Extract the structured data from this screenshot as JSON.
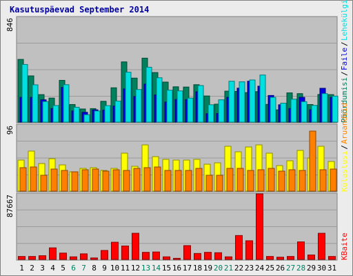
{
  "chart_data": {
    "title": "Kasutuspäevad September 2014",
    "days": [
      "1",
      "2",
      "3",
      "4",
      "5",
      "6",
      "7",
      "8",
      "9",
      "10",
      "11",
      "12",
      "13",
      "14",
      "15",
      "16",
      "17",
      "18",
      "19",
      "20",
      "21",
      "22",
      "23",
      "24",
      "25",
      "26",
      "27",
      "28",
      "29",
      "30",
      "31"
    ],
    "weekend_days": [
      "6",
      "7",
      "13",
      "14",
      "20",
      "21",
      "27",
      "28"
    ],
    "panels": [
      {
        "type": "bar",
        "y_max_label": "846",
        "ylim": [
          0,
          846
        ],
        "legend_words": [
          "Pöördumisi",
          "Faile",
          "Lehekülgi"
        ],
        "legend_colors": [
          "#00805c",
          "#0000e0",
          "#00e0e0"
        ],
        "series": [
          {
            "name": "Pöördumisi",
            "color": "#00805c",
            "values": [
              506,
              373,
              222,
              194,
              337,
              142,
              106,
              109,
              168,
              277,
              486,
              355,
              516,
              400,
              323,
              285,
              283,
              302,
              211,
              145,
              250,
              248,
              238,
              246,
              143,
              99,
              236,
              230,
              142,
              223,
              222
            ]
          },
          {
            "name": "Faile",
            "color": "#0000e0",
            "values": [
              200,
              200,
              180,
              110,
              280,
              90,
              79,
              99,
              97,
              130,
              268,
              207,
              307,
              220,
              162,
              183,
              182,
              245,
              68,
              70,
              200,
              274,
              330,
              290,
              215,
              140,
              110,
              200,
              100,
              273,
              200
            ]
          },
          {
            "name": "Lehekülgi",
            "color": "#00e0e0",
            "values": [
              465,
              301,
              166,
              134,
              302,
              120,
              60,
              90,
              133,
              170,
              403,
              263,
              443,
              358,
              258,
              252,
              194,
              295,
              140,
              180,
              330,
              325,
              340,
              380,
              200,
              153,
              185,
              165,
              135,
              230,
              210
            ]
          }
        ]
      },
      {
        "type": "bar",
        "y_max_label": "96",
        "ylim": [
          0,
          96
        ],
        "legend_words": [
          "Külastusi",
          "Aruandeid"
        ],
        "legend_colors": [
          "#ffff00",
          "#ff8000"
        ],
        "series": [
          {
            "name": "Külastusi",
            "color": "#ffff00",
            "values": [
              45,
              58,
              40,
              47,
              38,
              28,
              33,
              34,
              30,
              33,
              55,
              36,
              67,
              50,
              46,
              45,
              45,
              46,
              39,
              41,
              65,
              57,
              64,
              67,
              55,
              37,
              44,
              59,
              48,
              65,
              43
            ]
          },
          {
            "name": "Aruandeid",
            "color": "#ff8000",
            "values": [
              34,
              35,
              23,
              32,
              30,
              28,
              31,
              32,
              29,
              31,
              30,
              33,
              34,
              35,
              30,
              30,
              30,
              33,
              23,
              23,
              33,
              33,
              30,
              31,
              33,
              29,
              31,
              30,
              87,
              31,
              32
            ]
          }
        ]
      },
      {
        "type": "bar",
        "y_max_label": "87667",
        "ylim": [
          0,
          87667
        ],
        "legend_words": [
          "KBaite"
        ],
        "legend_colors": [
          "#ff0000"
        ],
        "series": [
          {
            "name": "KBaite",
            "color": "#ff0000",
            "values": [
              4000,
              4000,
              5000,
              15500,
              8500,
              3500,
              7500,
              2000,
              12000,
              23000,
              18000,
              35000,
              9500,
              10000,
              3500,
              1500,
              18500,
              8000,
              9500,
              9000,
              3500,
              32000,
              25000,
              87667,
              4000,
              3000,
              4000,
              23500,
              6000,
              35000,
              4000
            ]
          }
        ]
      }
    ]
  }
}
